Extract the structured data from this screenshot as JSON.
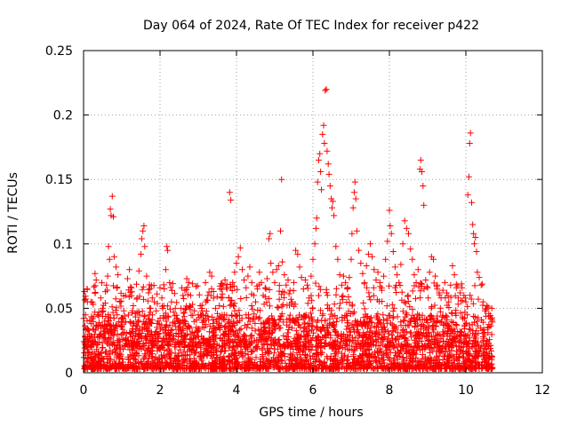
{
  "chart_data": {
    "type": "scatter",
    "title": "Day 064 of 2024, Rate Of TEC Index for receiver p422",
    "xlabel": "GPS time / hours",
    "ylabel": "ROTI / TECUs",
    "xlim": [
      0,
      12
    ],
    "ylim": [
      0,
      0.25
    ],
    "x_ticks": [
      0,
      2,
      4,
      6,
      8,
      10,
      12
    ],
    "x_tick_labels": [
      "0",
      "2",
      "4",
      "6",
      "8",
      "10",
      "12"
    ],
    "y_ticks": [
      0,
      0.05,
      0.1,
      0.15,
      0.2,
      0.25
    ],
    "y_tick_labels": [
      "0",
      "0.05",
      "0.1",
      "0.15",
      "0.2",
      "0.25"
    ],
    "grid": true,
    "marker": "+",
    "marker_color": "#ff0000",
    "series": [
      {
        "name": "ROTI",
        "points": [
          [
            0.02,
            0.063
          ],
          [
            0.05,
            0.045
          ],
          [
            0.1,
            0.055
          ],
          [
            0.15,
            0.03
          ],
          [
            0.2,
            0.038
          ],
          [
            0.25,
            0.053
          ],
          [
            0.3,
            0.077
          ],
          [
            0.33,
            0.072
          ],
          [
            0.4,
            0.047
          ],
          [
            0.45,
            0.058
          ],
          [
            0.5,
            0.05
          ],
          [
            0.55,
            0.04
          ],
          [
            0.6,
            0.068
          ],
          [
            0.63,
            0.075
          ],
          [
            0.65,
            0.098
          ],
          [
            0.68,
            0.088
          ],
          [
            0.7,
            0.127
          ],
          [
            0.72,
            0.122
          ],
          [
            0.75,
            0.137
          ],
          [
            0.78,
            0.121
          ],
          [
            0.8,
            0.09
          ],
          [
            0.85,
            0.082
          ],
          [
            0.9,
            0.076
          ],
          [
            0.95,
            0.055
          ],
          [
            1.0,
            0.042
          ],
          [
            1.05,
            0.048
          ],
          [
            1.1,
            0.06
          ],
          [
            1.15,
            0.073
          ],
          [
            1.2,
            0.08
          ],
          [
            1.25,
            0.066
          ],
          [
            1.3,
            0.052
          ],
          [
            1.35,
            0.046
          ],
          [
            1.4,
            0.058
          ],
          [
            1.45,
            0.079
          ],
          [
            1.5,
            0.092
          ],
          [
            1.52,
            0.104
          ],
          [
            1.55,
            0.11
          ],
          [
            1.58,
            0.114
          ],
          [
            1.6,
            0.098
          ],
          [
            1.65,
            0.075
          ],
          [
            1.7,
            0.062
          ],
          [
            1.75,
            0.05
          ],
          [
            1.8,
            0.045
          ],
          [
            1.85,
            0.055
          ],
          [
            1.9,
            0.048
          ],
          [
            1.95,
            0.04
          ],
          [
            2.0,
            0.066
          ],
          [
            2.05,
            0.058
          ],
          [
            2.1,
            0.052
          ],
          [
            2.15,
            0.08
          ],
          [
            2.18,
            0.098
          ],
          [
            2.2,
            0.095
          ],
          [
            2.25,
            0.07
          ],
          [
            2.3,
            0.055
          ],
          [
            2.35,
            0.047
          ],
          [
            2.4,
            0.05
          ],
          [
            2.45,
            0.042
          ],
          [
            2.5,
            0.038
          ],
          [
            2.55,
            0.05
          ],
          [
            2.6,
            0.06
          ],
          [
            2.65,
            0.064
          ],
          [
            2.7,
            0.073
          ],
          [
            2.75,
            0.07
          ],
          [
            2.8,
            0.06
          ],
          [
            2.85,
            0.053
          ],
          [
            2.9,
            0.048
          ],
          [
            2.95,
            0.041
          ],
          [
            3.0,
            0.045
          ],
          [
            3.05,
            0.052
          ],
          [
            3.1,
            0.048
          ],
          [
            3.15,
            0.04
          ],
          [
            3.2,
            0.055
          ],
          [
            3.25,
            0.06
          ],
          [
            3.3,
            0.078
          ],
          [
            3.35,
            0.075
          ],
          [
            3.4,
            0.063
          ],
          [
            3.45,
            0.05
          ],
          [
            3.5,
            0.046
          ],
          [
            3.55,
            0.052
          ],
          [
            3.6,
            0.058
          ],
          [
            3.65,
            0.068
          ],
          [
            3.7,
            0.072
          ],
          [
            3.75,
            0.065
          ],
          [
            3.8,
            0.058
          ],
          [
            3.82,
            0.14
          ],
          [
            3.85,
            0.134
          ],
          [
            3.9,
            0.07
          ],
          [
            3.95,
            0.078
          ],
          [
            4.0,
            0.085
          ],
          [
            4.05,
            0.09
          ],
          [
            4.1,
            0.097
          ],
          [
            4.15,
            0.08
          ],
          [
            4.2,
            0.072
          ],
          [
            4.25,
            0.066
          ],
          [
            4.3,
            0.075
          ],
          [
            4.35,
            0.082
          ],
          [
            4.4,
            0.07
          ],
          [
            4.45,
            0.06
          ],
          [
            4.5,
            0.055
          ],
          [
            4.55,
            0.065
          ],
          [
            4.6,
            0.078
          ],
          [
            4.65,
            0.07
          ],
          [
            4.7,
            0.06
          ],
          [
            4.75,
            0.066
          ],
          [
            4.8,
            0.073
          ],
          [
            4.85,
            0.104
          ],
          [
            4.88,
            0.108
          ],
          [
            4.9,
            0.085
          ],
          [
            4.95,
            0.078
          ],
          [
            5.0,
            0.07
          ],
          [
            5.05,
            0.08
          ],
          [
            5.1,
            0.083
          ],
          [
            5.15,
            0.11
          ],
          [
            5.18,
            0.15
          ],
          [
            5.2,
            0.086
          ],
          [
            5.25,
            0.076
          ],
          [
            5.3,
            0.068
          ],
          [
            5.35,
            0.072
          ],
          [
            5.4,
            0.064
          ],
          [
            5.45,
            0.055
          ],
          [
            5.5,
            0.07
          ],
          [
            5.55,
            0.095
          ],
          [
            5.6,
            0.092
          ],
          [
            5.65,
            0.082
          ],
          [
            5.7,
            0.074
          ],
          [
            5.75,
            0.065
          ],
          [
            5.8,
            0.072
          ],
          [
            5.85,
            0.068
          ],
          [
            5.9,
            0.058
          ],
          [
            5.95,
            0.075
          ],
          [
            6.0,
            0.088
          ],
          [
            6.05,
            0.1
          ],
          [
            6.08,
            0.112
          ],
          [
            6.1,
            0.12
          ],
          [
            6.12,
            0.148
          ],
          [
            6.15,
            0.165
          ],
          [
            6.18,
            0.17
          ],
          [
            6.2,
            0.156
          ],
          [
            6.22,
            0.142
          ],
          [
            6.25,
            0.185
          ],
          [
            6.28,
            0.192
          ],
          [
            6.3,
            0.178
          ],
          [
            6.32,
            0.219
          ],
          [
            6.35,
            0.22
          ],
          [
            6.37,
            0.172
          ],
          [
            6.4,
            0.162
          ],
          [
            6.42,
            0.154
          ],
          [
            6.45,
            0.145
          ],
          [
            6.48,
            0.135
          ],
          [
            6.5,
            0.128
          ],
          [
            6.52,
            0.133
          ],
          [
            6.55,
            0.122
          ],
          [
            6.6,
            0.098
          ],
          [
            6.65,
            0.088
          ],
          [
            6.7,
            0.076
          ],
          [
            6.75,
            0.068
          ],
          [
            6.8,
            0.075
          ],
          [
            6.85,
            0.07
          ],
          [
            6.9,
            0.065
          ],
          [
            6.95,
            0.074
          ],
          [
            7.0,
            0.088
          ],
          [
            7.02,
            0.108
          ],
          [
            7.05,
            0.128
          ],
          [
            7.08,
            0.14
          ],
          [
            7.1,
            0.148
          ],
          [
            7.12,
            0.135
          ],
          [
            7.15,
            0.11
          ],
          [
            7.2,
            0.095
          ],
          [
            7.25,
            0.085
          ],
          [
            7.3,
            0.077
          ],
          [
            7.35,
            0.07
          ],
          [
            7.4,
            0.083
          ],
          [
            7.45,
            0.092
          ],
          [
            7.5,
            0.1
          ],
          [
            7.55,
            0.09
          ],
          [
            7.6,
            0.08
          ],
          [
            7.65,
            0.072
          ],
          [
            7.7,
            0.078
          ],
          [
            7.75,
            0.07
          ],
          [
            7.8,
            0.064
          ],
          [
            7.85,
            0.075
          ],
          [
            7.9,
            0.088
          ],
          [
            7.95,
            0.102
          ],
          [
            8.0,
            0.126
          ],
          [
            8.02,
            0.114
          ],
          [
            8.05,
            0.108
          ],
          [
            8.1,
            0.094
          ],
          [
            8.15,
            0.082
          ],
          [
            8.2,
            0.076
          ],
          [
            8.25,
            0.07
          ],
          [
            8.3,
            0.084
          ],
          [
            8.35,
            0.1
          ],
          [
            8.4,
            0.118
          ],
          [
            8.45,
            0.112
          ],
          [
            8.5,
            0.108
          ],
          [
            8.55,
            0.096
          ],
          [
            8.6,
            0.088
          ],
          [
            8.65,
            0.076
          ],
          [
            8.7,
            0.07
          ],
          [
            8.75,
            0.08
          ],
          [
            8.8,
            0.158
          ],
          [
            8.82,
            0.165
          ],
          [
            8.85,
            0.156
          ],
          [
            8.88,
            0.145
          ],
          [
            8.9,
            0.13
          ],
          [
            8.95,
            0.072
          ],
          [
            9.0,
            0.066
          ],
          [
            9.05,
            0.078
          ],
          [
            9.1,
            0.09
          ],
          [
            9.15,
            0.088
          ],
          [
            9.2,
            0.075
          ],
          [
            9.25,
            0.068
          ],
          [
            9.3,
            0.062
          ],
          [
            9.35,
            0.058
          ],
          [
            9.4,
            0.064
          ],
          [
            9.45,
            0.07
          ],
          [
            9.5,
            0.062
          ],
          [
            9.55,
            0.055
          ],
          [
            9.6,
            0.068
          ],
          [
            9.65,
            0.083
          ],
          [
            9.7,
            0.076
          ],
          [
            9.75,
            0.066
          ],
          [
            9.8,
            0.058
          ],
          [
            9.85,
            0.062
          ],
          [
            9.9,
            0.066
          ],
          [
            9.95,
            0.06
          ],
          [
            10.0,
            0.055
          ],
          [
            10.05,
            0.138
          ],
          [
            10.08,
            0.152
          ],
          [
            10.1,
            0.178
          ],
          [
            10.12,
            0.186
          ],
          [
            10.15,
            0.132
          ],
          [
            10.18,
            0.115
          ],
          [
            10.2,
            0.108
          ],
          [
            10.22,
            0.1
          ],
          [
            10.25,
            0.105
          ],
          [
            10.28,
            0.094
          ],
          [
            10.3,
            0.078
          ],
          [
            10.35,
            0.074
          ],
          [
            10.4,
            0.068
          ],
          [
            10.45,
            0.055
          ],
          [
            10.5,
            0.048
          ],
          [
            10.55,
            0.052
          ],
          [
            10.6,
            0.046
          ],
          [
            10.65,
            0.042
          ],
          [
            10.68,
            0.05
          ]
        ],
        "dense_band": {
          "x_range": [
            0,
            10.7
          ],
          "y_range": [
            0.003,
            0.045
          ],
          "typical_max": 0.03
        }
      }
    ]
  }
}
